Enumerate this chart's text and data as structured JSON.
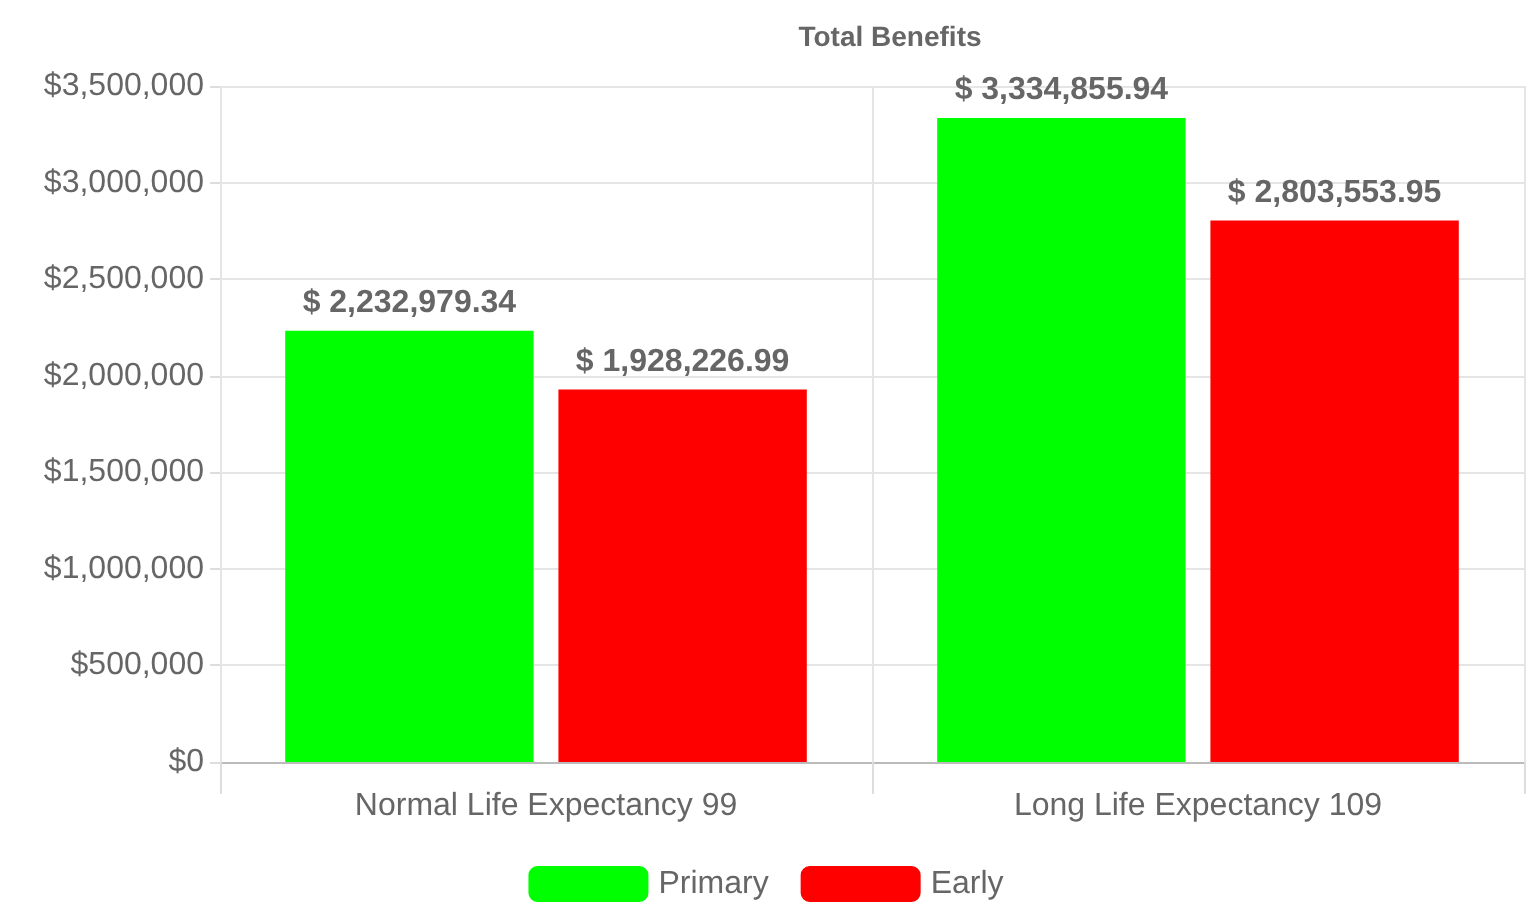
{
  "chart_data": {
    "type": "bar",
    "title": "Total Benefits",
    "categories": [
      "Normal Life Expectancy 99",
      "Long Life Expectancy 109"
    ],
    "series": [
      {
        "name": "Primary",
        "color": "#00ff00",
        "values": [
          2232979.34,
          3334855.94
        ],
        "value_labels": [
          "$ 2,232,979.34",
          "$ 3,334,855.94"
        ]
      },
      {
        "name": "Early",
        "color": "#ff0000",
        "values": [
          1928226.99,
          2803553.95
        ],
        "value_labels": [
          "$ 1,928,226.99",
          "$ 2,803,553.95"
        ]
      }
    ],
    "ylim": [
      0,
      3500000
    ],
    "yticks": [
      {
        "value": 0,
        "label": "$0"
      },
      {
        "value": 500000,
        "label": "$500,000"
      },
      {
        "value": 1000000,
        "label": "$1,000,000"
      },
      {
        "value": 1500000,
        "label": "$1,500,000"
      },
      {
        "value": 2000000,
        "label": "$2,000,000"
      },
      {
        "value": 2500000,
        "label": "$2,500,000"
      },
      {
        "value": 3000000,
        "label": "$3,000,000"
      },
      {
        "value": 3500000,
        "label": "$3,500,000"
      }
    ],
    "grid": true,
    "legend": "bottom"
  }
}
